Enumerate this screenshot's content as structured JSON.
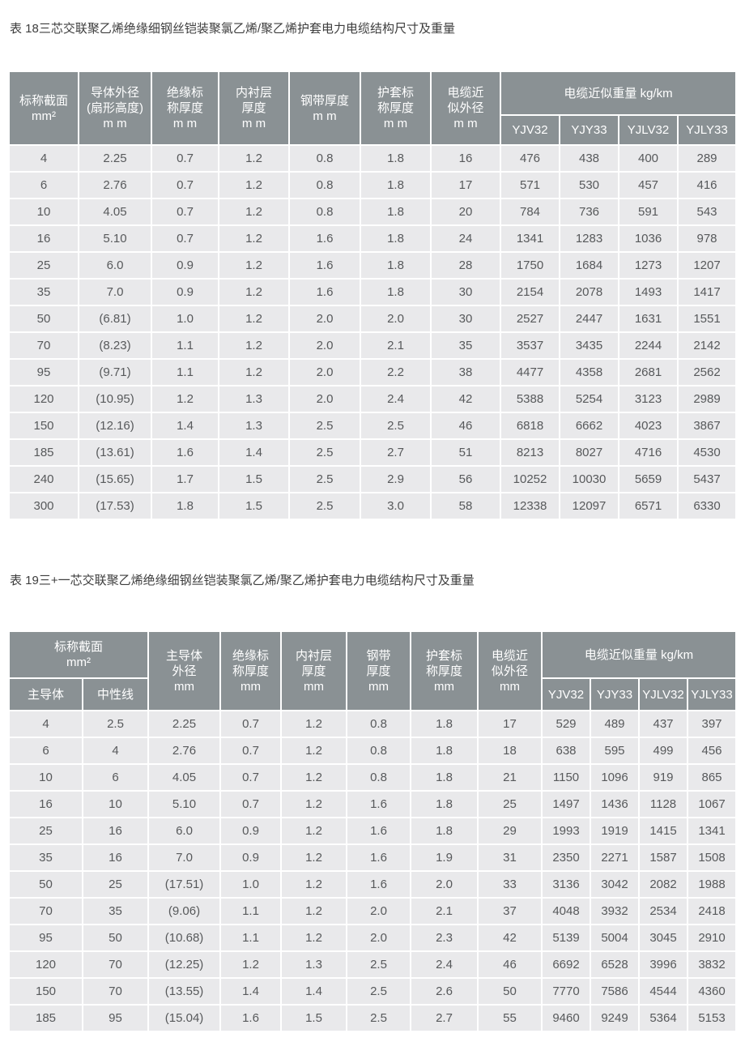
{
  "colors": {
    "header_bg": "#8a9194",
    "header_text": "#ffffff",
    "row_bg": "#e9e9eb",
    "row_text": "#57595b",
    "title_text": "#3d3d3d",
    "page_bg": "#ffffff"
  },
  "table18": {
    "title": "表 18三芯交联聚乙烯绝缘细钢丝铠装聚氯乙烯/聚乙烯护套电力电缆结构尺寸及重量",
    "headers": {
      "nominal_section": "标称截面\nmm²",
      "conductor_od": "导体外径\n(扇形高度)\nm m",
      "insulation_thickness": "绝缘标\n称厚度\nm m",
      "inner_liner": "内衬层\n厚度\nm m",
      "steel_tape": "钢带厚度\nm m",
      "sheath_thickness": "护套标\n称厚度\nm m",
      "cable_od": "电缆近\n似外径\nm m",
      "weight_group": "电缆近似重量 kg/km",
      "weight_cols": [
        "YJV32",
        "YJY33",
        "YJLV32",
        "YJLY33"
      ]
    },
    "rows": [
      [
        "4",
        "2.25",
        "0.7",
        "1.2",
        "0.8",
        "1.8",
        "16",
        "476",
        "438",
        "400",
        "289"
      ],
      [
        "6",
        "2.76",
        "0.7",
        "1.2",
        "0.8",
        "1.8",
        "17",
        "571",
        "530",
        "457",
        "416"
      ],
      [
        "10",
        "4.05",
        "0.7",
        "1.2",
        "0.8",
        "1.8",
        "20",
        "784",
        "736",
        "591",
        "543"
      ],
      [
        "16",
        "5.10",
        "0.7",
        "1.2",
        "1.6",
        "1.8",
        "24",
        "1341",
        "1283",
        "1036",
        "978"
      ],
      [
        "25",
        "6.0",
        "0.9",
        "1.2",
        "1.6",
        "1.8",
        "28",
        "1750",
        "1684",
        "1273",
        "1207"
      ],
      [
        "35",
        "7.0",
        "0.9",
        "1.2",
        "1.6",
        "1.8",
        "30",
        "2154",
        "2078",
        "1493",
        "1417"
      ],
      [
        "50",
        "(6.81)",
        "1.0",
        "1.2",
        "2.0",
        "2.0",
        "30",
        "2527",
        "2447",
        "1631",
        "1551"
      ],
      [
        "70",
        "(8.23)",
        "1.1",
        "1.2",
        "2.0",
        "2.1",
        "35",
        "3537",
        "3435",
        "2244",
        "2142"
      ],
      [
        "95",
        "(9.71)",
        "1.1",
        "1.2",
        "2.0",
        "2.2",
        "38",
        "4477",
        "4358",
        "2681",
        "2562"
      ],
      [
        "120",
        "(10.95)",
        "1.2",
        "1.3",
        "2.0",
        "2.4",
        "42",
        "5388",
        "5254",
        "3123",
        "2989"
      ],
      [
        "150",
        "(12.16)",
        "1.4",
        "1.3",
        "2.5",
        "2.5",
        "46",
        "6818",
        "6662",
        "4023",
        "3867"
      ],
      [
        "185",
        "(13.61)",
        "1.6",
        "1.4",
        "2.5",
        "2.7",
        "51",
        "8213",
        "8027",
        "4716",
        "4530"
      ],
      [
        "240",
        "(15.65)",
        "1.7",
        "1.5",
        "2.5",
        "2.9",
        "56",
        "10252",
        "10030",
        "5659",
        "5437"
      ],
      [
        "300",
        "(17.53)",
        "1.8",
        "1.5",
        "2.5",
        "3.0",
        "58",
        "12338",
        "12097",
        "6571",
        "6330"
      ]
    ]
  },
  "table19": {
    "title": "表 19三+一芯交联聚乙烯绝缘细钢丝铠装聚氯乙烯/聚乙烯护套电力电缆结构尺寸及重量",
    "headers": {
      "section_group": "标称截面\nmm²",
      "sub_main_conductor": "主导体",
      "sub_neutral": "中性线",
      "main_conductor_od": "主导体\n外径\nmm",
      "insulation_thickness": "绝缘标\n称厚度\nmm",
      "inner_liner": "内衬层\n厚度\nmm",
      "steel_tape": "钢带\n厚度\nmm",
      "sheath_thickness": "护套标\n称厚度\nmm",
      "cable_od": "电缆近\n似外径\nmm",
      "weight_group": "电缆近似重量 kg/km",
      "weight_cols": [
        "YJV32",
        "YJY33",
        "YJLV32",
        "YJLY33"
      ]
    },
    "rows": [
      [
        "4",
        "2.5",
        "2.25",
        "0.7",
        "1.2",
        "0.8",
        "1.8",
        "17",
        "529",
        "489",
        "437",
        "397"
      ],
      [
        "6",
        "4",
        "2.76",
        "0.7",
        "1.2",
        "0.8",
        "1.8",
        "18",
        "638",
        "595",
        "499",
        "456"
      ],
      [
        "10",
        "6",
        "4.05",
        "0.7",
        "1.2",
        "0.8",
        "1.8",
        "21",
        "1150",
        "1096",
        "919",
        "865"
      ],
      [
        "16",
        "10",
        "5.10",
        "0.7",
        "1.2",
        "1.6",
        "1.8",
        "25",
        "1497",
        "1436",
        "1128",
        "1067"
      ],
      [
        "25",
        "16",
        "6.0",
        "0.9",
        "1.2",
        "1.6",
        "1.8",
        "29",
        "1993",
        "1919",
        "1415",
        "1341"
      ],
      [
        "35",
        "16",
        "7.0",
        "0.9",
        "1.2",
        "1.6",
        "1.9",
        "31",
        "2350",
        "2271",
        "1587",
        "1508"
      ],
      [
        "50",
        "25",
        "(17.51)",
        "1.0",
        "1.2",
        "1.6",
        "2.0",
        "33",
        "3136",
        "3042",
        "2082",
        "1988"
      ],
      [
        "70",
        "35",
        "(9.06)",
        "1.1",
        "1.2",
        "2.0",
        "2.1",
        "37",
        "4048",
        "3932",
        "2534",
        "2418"
      ],
      [
        "95",
        "50",
        "(10.68)",
        "1.1",
        "1.2",
        "2.0",
        "2.3",
        "42",
        "5139",
        "5004",
        "3045",
        "2910"
      ],
      [
        "120",
        "70",
        "(12.25)",
        "1.2",
        "1.3",
        "2.5",
        "2.4",
        "46",
        "6692",
        "6528",
        "3996",
        "3832"
      ],
      [
        "150",
        "70",
        "(13.55)",
        "1.4",
        "1.4",
        "2.5",
        "2.6",
        "50",
        "7770",
        "7586",
        "4544",
        "4360"
      ],
      [
        "185",
        "95",
        "(15.04)",
        "1.6",
        "1.5",
        "2.5",
        "2.7",
        "55",
        "9460",
        "9249",
        "5364",
        "5153"
      ]
    ]
  }
}
